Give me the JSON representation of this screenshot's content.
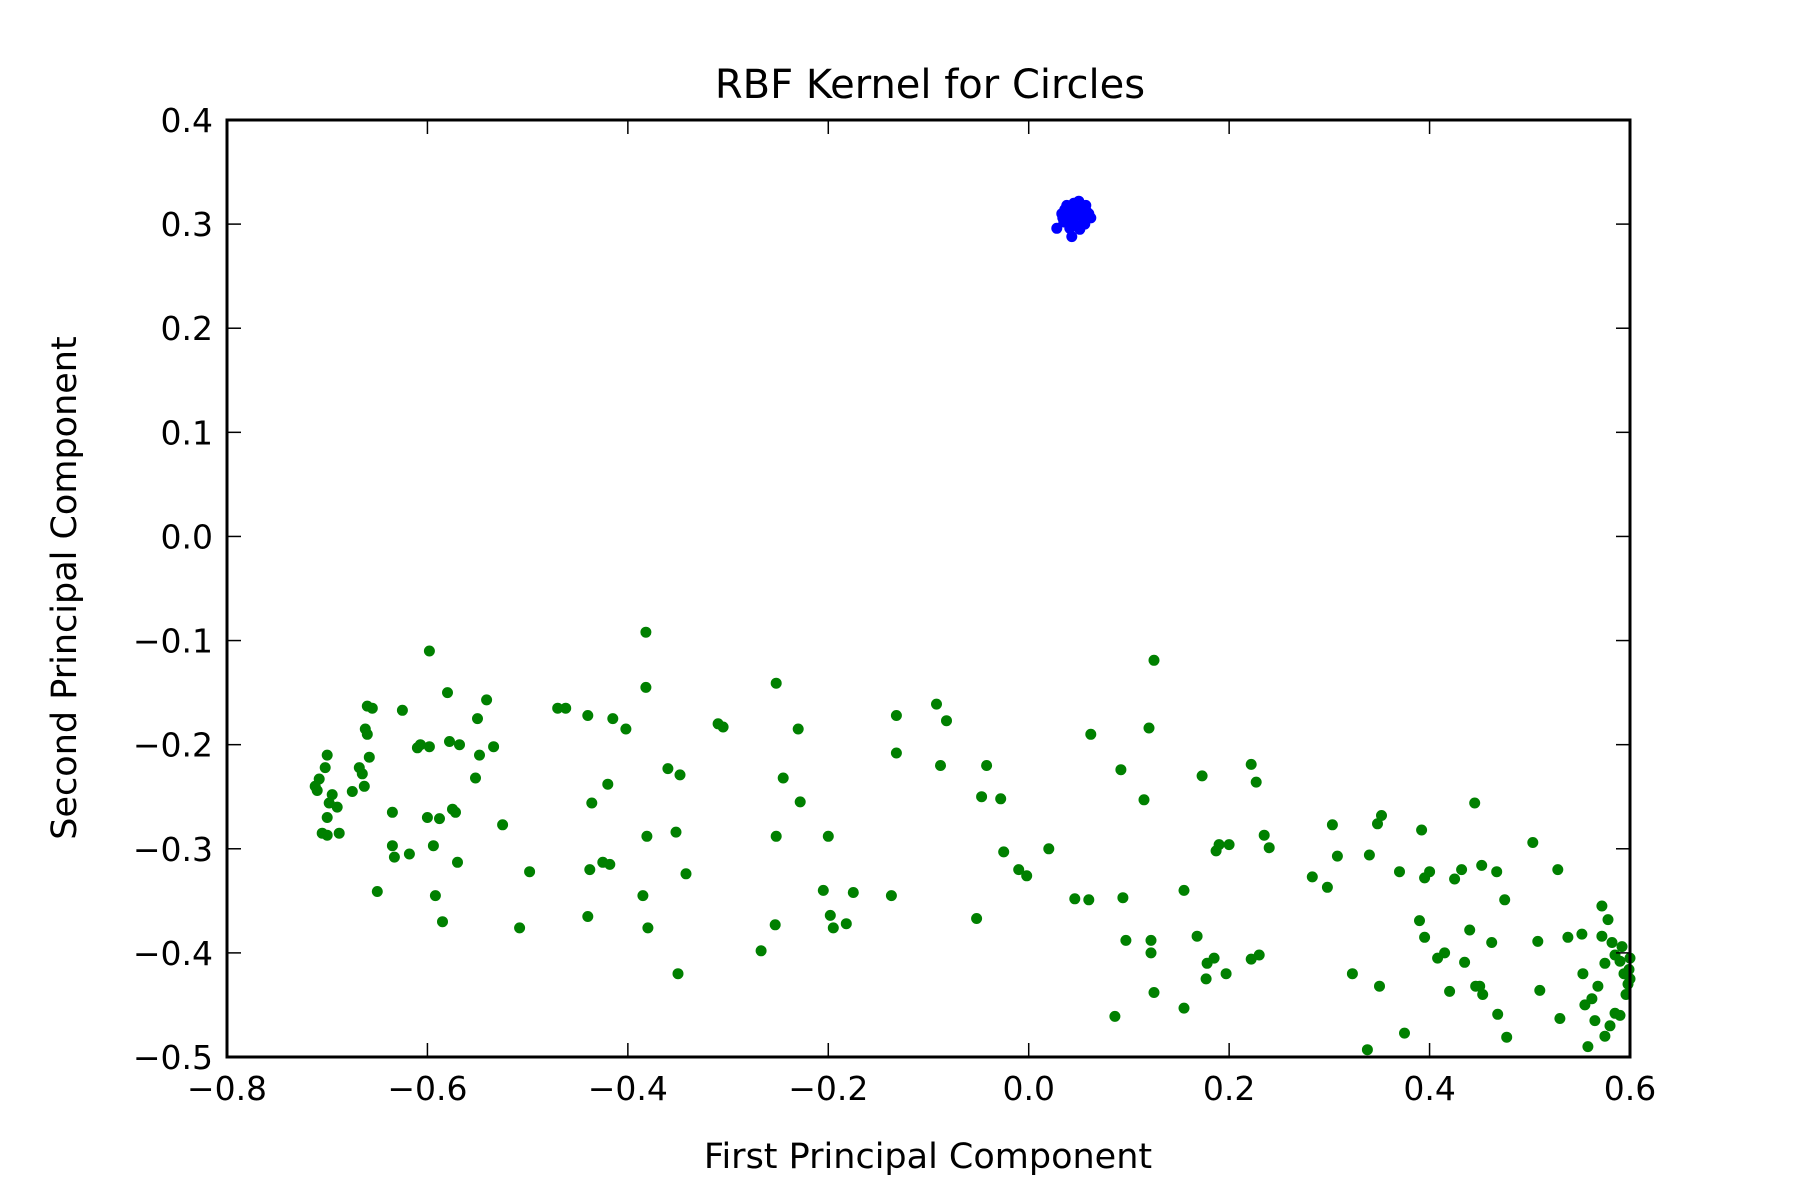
{
  "chart_data": {
    "type": "scatter",
    "title": "RBF Kernel for Circles",
    "xlabel": "First Principal Component",
    "ylabel": "Second Principal Component",
    "xlim": [
      -0.8,
      0.6
    ],
    "ylim": [
      -0.5,
      0.4
    ],
    "x_ticks": [
      -0.8,
      -0.6,
      -0.4,
      -0.2,
      0.0,
      0.2,
      0.4,
      0.6
    ],
    "y_ticks": [
      -0.5,
      -0.4,
      -0.3,
      -0.2,
      -0.1,
      0.0,
      0.1,
      0.2,
      0.3,
      0.4
    ],
    "x_tick_labels": [
      "−0.8",
      "−0.6",
      "−0.4",
      "−0.2",
      "0.0",
      "0.2",
      "0.4",
      "0.6"
    ],
    "y_tick_labels": [
      "−0.5",
      "−0.4",
      "−0.3",
      "−0.2",
      "−0.1",
      "0.0",
      "0.1",
      "0.2",
      "0.3",
      "0.4"
    ],
    "grid": false,
    "legend": "none",
    "series": [
      {
        "color": "#0000ff",
        "points": [
          [
            0.038,
            0.318
          ],
          [
            0.045,
            0.32
          ],
          [
            0.052,
            0.316
          ],
          [
            0.058,
            0.312
          ],
          [
            0.062,
            0.306
          ],
          [
            0.055,
            0.302
          ],
          [
            0.048,
            0.298
          ],
          [
            0.041,
            0.296
          ],
          [
            0.035,
            0.302
          ],
          [
            0.033,
            0.31
          ],
          [
            0.04,
            0.312
          ],
          [
            0.047,
            0.31
          ],
          [
            0.053,
            0.307
          ],
          [
            0.044,
            0.304
          ],
          [
            0.05,
            0.322
          ],
          [
            0.036,
            0.314
          ],
          [
            0.057,
            0.318
          ],
          [
            0.043,
            0.288
          ],
          [
            0.028,
            0.296
          ],
          [
            0.06,
            0.31
          ],
          [
            0.039,
            0.306
          ],
          [
            0.051,
            0.295
          ],
          [
            0.046,
            0.314
          ],
          [
            0.034,
            0.306
          ],
          [
            0.056,
            0.3
          ]
        ]
      },
      {
        "color": "#008000",
        "points": [
          [
            -0.712,
            -0.24
          ],
          [
            -0.708,
            -0.233
          ],
          [
            -0.71,
            -0.244
          ],
          [
            -0.702,
            -0.222
          ],
          [
            -0.7,
            -0.21
          ],
          [
            -0.698,
            -0.256
          ],
          [
            -0.695,
            -0.248
          ],
          [
            -0.705,
            -0.285
          ],
          [
            -0.7,
            -0.287
          ],
          [
            -0.7,
            -0.27
          ],
          [
            -0.69,
            -0.26
          ],
          [
            -0.688,
            -0.285
          ],
          [
            -0.675,
            -0.245
          ],
          [
            -0.665,
            -0.228
          ],
          [
            -0.668,
            -0.222
          ],
          [
            -0.663,
            -0.24
          ],
          [
            -0.66,
            -0.163
          ],
          [
            -0.655,
            -0.165
          ],
          [
            -0.662,
            -0.185
          ],
          [
            -0.66,
            -0.19
          ],
          [
            -0.658,
            -0.212
          ],
          [
            -0.65,
            -0.341
          ],
          [
            -0.635,
            -0.265
          ],
          [
            -0.635,
            -0.297
          ],
          [
            -0.633,
            -0.308
          ],
          [
            -0.625,
            -0.167
          ],
          [
            -0.618,
            -0.305
          ],
          [
            -0.61,
            -0.203
          ],
          [
            -0.607,
            -0.2
          ],
          [
            -0.598,
            -0.11
          ],
          [
            -0.598,
            -0.202
          ],
          [
            -0.6,
            -0.27
          ],
          [
            -0.594,
            -0.297
          ],
          [
            -0.592,
            -0.345
          ],
          [
            -0.588,
            -0.271
          ],
          [
            -0.585,
            -0.37
          ],
          [
            -0.58,
            -0.15
          ],
          [
            -0.578,
            -0.197
          ],
          [
            -0.575,
            -0.262
          ],
          [
            -0.572,
            -0.265
          ],
          [
            -0.57,
            -0.313
          ],
          [
            -0.568,
            -0.2
          ],
          [
            -0.55,
            -0.175
          ],
          [
            -0.552,
            -0.232
          ],
          [
            -0.548,
            -0.21
          ],
          [
            -0.541,
            -0.157
          ],
          [
            -0.534,
            -0.202
          ],
          [
            -0.525,
            -0.277
          ],
          [
            -0.508,
            -0.376
          ],
          [
            -0.498,
            -0.322
          ],
          [
            -0.47,
            -0.165
          ],
          [
            -0.462,
            -0.165
          ],
          [
            -0.44,
            -0.172
          ],
          [
            -0.44,
            -0.365
          ],
          [
            -0.438,
            -0.32
          ],
          [
            -0.436,
            -0.256
          ],
          [
            -0.425,
            -0.313
          ],
          [
            -0.42,
            -0.238
          ],
          [
            -0.418,
            -0.315
          ],
          [
            -0.415,
            -0.175
          ],
          [
            -0.402,
            -0.185
          ],
          [
            -0.385,
            -0.345
          ],
          [
            -0.382,
            -0.092
          ],
          [
            -0.382,
            -0.145
          ],
          [
            -0.381,
            -0.288
          ],
          [
            -0.38,
            -0.376
          ],
          [
            -0.36,
            -0.223
          ],
          [
            -0.352,
            -0.284
          ],
          [
            -0.35,
            -0.42
          ],
          [
            -0.348,
            -0.229
          ],
          [
            -0.342,
            -0.324
          ],
          [
            -0.31,
            -0.18
          ],
          [
            -0.305,
            -0.183
          ],
          [
            -0.267,
            -0.398
          ],
          [
            -0.252,
            -0.141
          ],
          [
            -0.253,
            -0.373
          ],
          [
            -0.252,
            -0.288
          ],
          [
            -0.245,
            -0.232
          ],
          [
            -0.23,
            -0.185
          ],
          [
            -0.228,
            -0.255
          ],
          [
            -0.205,
            -0.34
          ],
          [
            -0.2,
            -0.288
          ],
          [
            -0.198,
            -0.364
          ],
          [
            -0.195,
            -0.376
          ],
          [
            -0.182,
            -0.372
          ],
          [
            -0.175,
            -0.342
          ],
          [
            -0.137,
            -0.345
          ],
          [
            -0.132,
            -0.172
          ],
          [
            -0.132,
            -0.208
          ],
          [
            -0.092,
            -0.161
          ],
          [
            -0.088,
            -0.22
          ],
          [
            -0.082,
            -0.177
          ],
          [
            -0.052,
            -0.367
          ],
          [
            -0.047,
            -0.25
          ],
          [
            -0.042,
            -0.22
          ],
          [
            -0.028,
            -0.252
          ],
          [
            -0.025,
            -0.303
          ],
          [
            -0.01,
            -0.32
          ],
          [
            -0.002,
            -0.326
          ],
          [
            0.02,
            -0.3
          ],
          [
            0.046,
            -0.348
          ],
          [
            0.06,
            -0.349
          ],
          [
            0.062,
            -0.19
          ],
          [
            0.086,
            -0.461
          ],
          [
            0.092,
            -0.224
          ],
          [
            0.094,
            -0.347
          ],
          [
            0.097,
            -0.388
          ],
          [
            0.115,
            -0.253
          ],
          [
            0.12,
            -0.184
          ],
          [
            0.122,
            -0.388
          ],
          [
            0.122,
            -0.4
          ],
          [
            0.125,
            -0.119
          ],
          [
            0.125,
            -0.438
          ],
          [
            0.155,
            -0.34
          ],
          [
            0.155,
            -0.453
          ],
          [
            0.168,
            -0.384
          ],
          [
            0.173,
            -0.23
          ],
          [
            0.177,
            -0.425
          ],
          [
            0.178,
            -0.41
          ],
          [
            0.185,
            -0.405
          ],
          [
            0.187,
            -0.302
          ],
          [
            0.19,
            -0.296
          ],
          [
            0.197,
            -0.42
          ],
          [
            0.2,
            -0.296
          ],
          [
            0.222,
            -0.219
          ],
          [
            0.222,
            -0.406
          ],
          [
            0.227,
            -0.236
          ],
          [
            0.23,
            -0.402
          ],
          [
            0.235,
            -0.287
          ],
          [
            0.24,
            -0.299
          ],
          [
            0.283,
            -0.327
          ],
          [
            0.298,
            -0.337
          ],
          [
            0.303,
            -0.277
          ],
          [
            0.308,
            -0.307
          ],
          [
            0.323,
            -0.42
          ],
          [
            0.338,
            -0.493
          ],
          [
            0.34,
            -0.306
          ],
          [
            0.348,
            -0.276
          ],
          [
            0.35,
            -0.432
          ],
          [
            0.352,
            -0.268
          ],
          [
            0.37,
            -0.322
          ],
          [
            0.375,
            -0.477
          ],
          [
            0.39,
            -0.369
          ],
          [
            0.392,
            -0.282
          ],
          [
            0.395,
            -0.385
          ],
          [
            0.395,
            -0.328
          ],
          [
            0.4,
            -0.322
          ],
          [
            0.408,
            -0.405
          ],
          [
            0.415,
            -0.4
          ],
          [
            0.42,
            -0.437
          ],
          [
            0.425,
            -0.329
          ],
          [
            0.432,
            -0.32
          ],
          [
            0.435,
            -0.409
          ],
          [
            0.44,
            -0.378
          ],
          [
            0.445,
            -0.256
          ],
          [
            0.446,
            -0.432
          ],
          [
            0.45,
            -0.432
          ],
          [
            0.452,
            -0.316
          ],
          [
            0.453,
            -0.44
          ],
          [
            0.462,
            -0.39
          ],
          [
            0.467,
            -0.322
          ],
          [
            0.468,
            -0.459
          ],
          [
            0.475,
            -0.349
          ],
          [
            0.477,
            -0.481
          ],
          [
            0.503,
            -0.294
          ],
          [
            0.508,
            -0.389
          ],
          [
            0.51,
            -0.436
          ],
          [
            0.528,
            -0.32
          ],
          [
            0.53,
            -0.463
          ],
          [
            0.538,
            -0.385
          ],
          [
            0.552,
            -0.382
          ],
          [
            0.553,
            -0.42
          ],
          [
            0.555,
            -0.45
          ],
          [
            0.558,
            -0.49
          ],
          [
            0.562,
            -0.444
          ],
          [
            0.565,
            -0.465
          ],
          [
            0.568,
            -0.432
          ],
          [
            0.572,
            -0.384
          ],
          [
            0.572,
            -0.355
          ],
          [
            0.575,
            -0.41
          ],
          [
            0.575,
            -0.48
          ],
          [
            0.578,
            -0.368
          ],
          [
            0.58,
            -0.47
          ],
          [
            0.582,
            -0.39
          ],
          [
            0.585,
            -0.458
          ],
          [
            0.585,
            -0.402
          ],
          [
            0.59,
            -0.46
          ],
          [
            0.59,
            -0.408
          ],
          [
            0.592,
            -0.394
          ],
          [
            0.594,
            -0.42
          ],
          [
            0.596,
            -0.44
          ],
          [
            0.598,
            -0.43
          ],
          [
            0.599,
            -0.416
          ],
          [
            0.6,
            -0.405
          ],
          [
            0.6,
            -0.425
          ]
        ]
      }
    ]
  }
}
